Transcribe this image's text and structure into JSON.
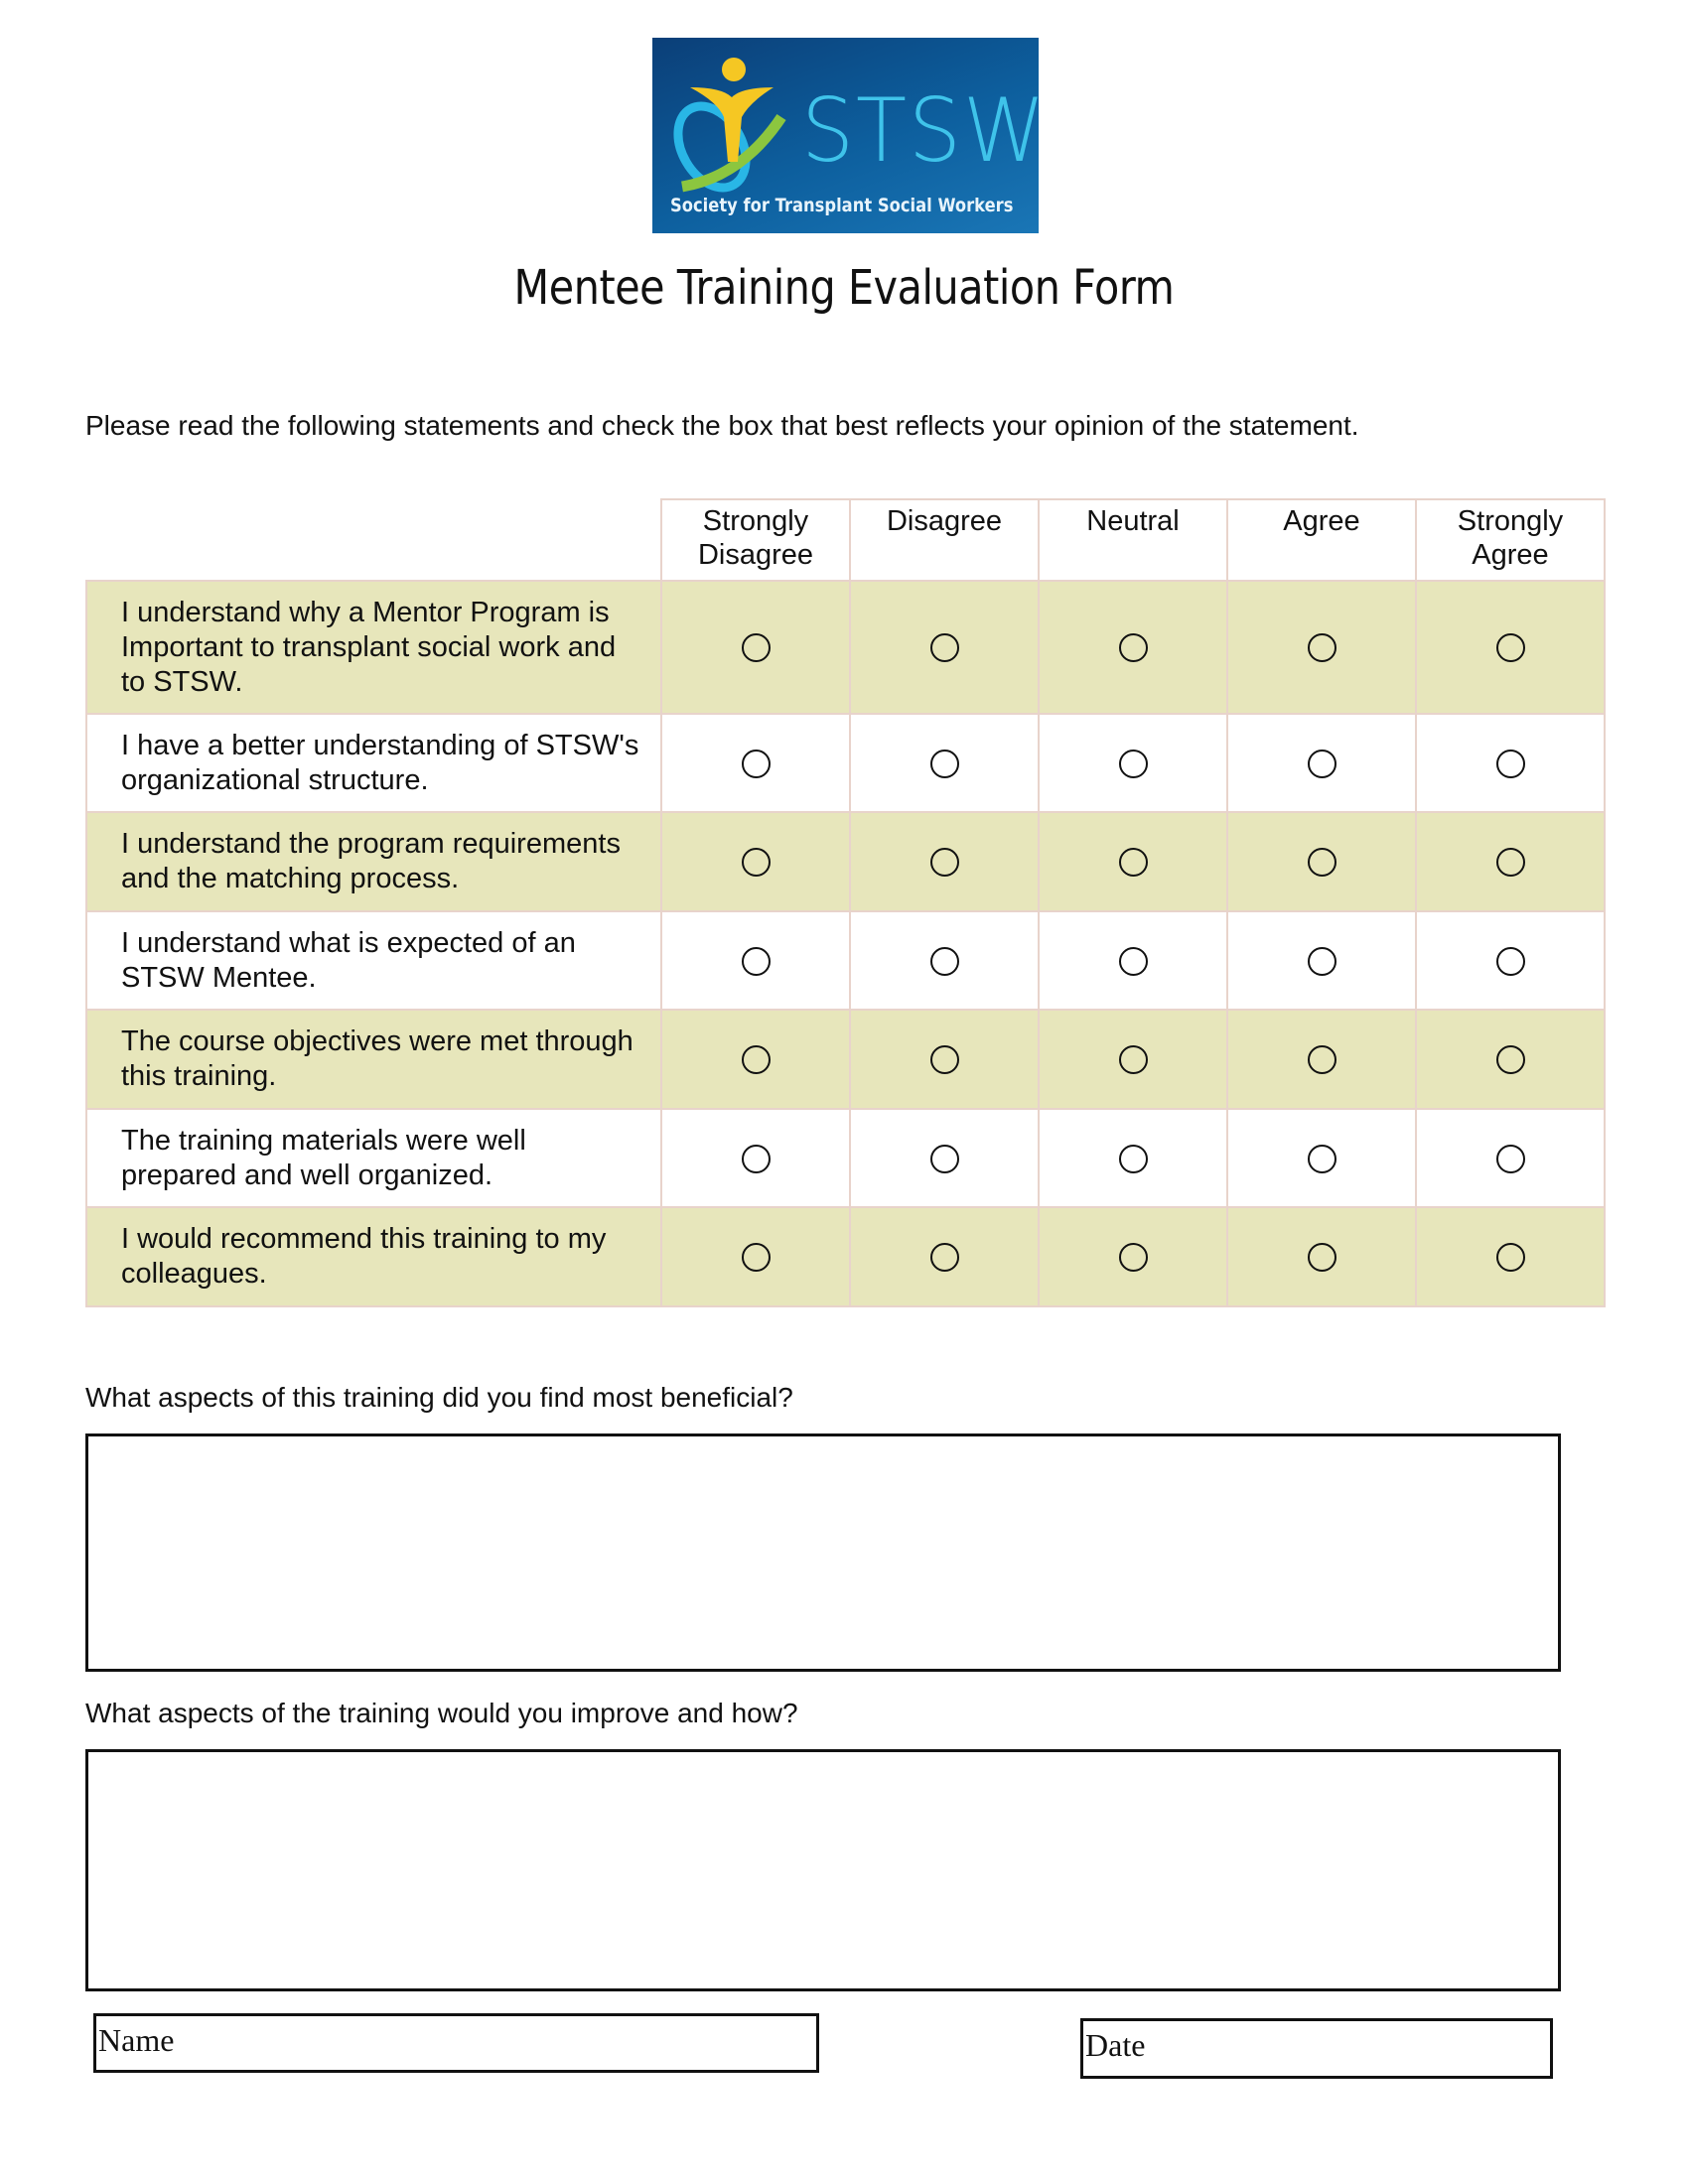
{
  "logo": {
    "wordmark": "STSW",
    "tagline": "Society for Transplant Social Workers",
    "colors": {
      "background": "#0d5f9e",
      "wordmark": "#3fc3ea",
      "figure": "#f5c723",
      "swoosh_green": "#8cc63f",
      "swoosh_blue": "#29b6e6"
    }
  },
  "title": "Mentee Training Evaluation Form",
  "instructions": "Please read the following statements and check the box that best reflects your opinion of the statement.",
  "scale": [
    {
      "line1": "Strongly",
      "line2": "Disagree"
    },
    {
      "line1": "Disagree",
      "line2": ""
    },
    {
      "line1": "Neutral",
      "line2": ""
    },
    {
      "line1": "Agree",
      "line2": ""
    },
    {
      "line1": "Strongly",
      "line2": "Agree"
    }
  ],
  "statements": [
    "I understand why a Mentor Program is Important to transplant social work and to STSW.",
    "I have a better understanding of STSW's organizational structure.",
    "I understand the program requirements and the matching process.",
    "I understand what is expected of an STSW Mentee.",
    "The course objectives were met through this training.",
    "The training materials were well prepared and well organized.",
    "I would recommend this training to my colleagues."
  ],
  "row_shade_color": "#e7e6bb",
  "questions": {
    "q1": "What aspects of this training did you find most beneficial?",
    "q2": "What aspects of the training would you improve and how?"
  },
  "fields": {
    "name": "Name",
    "date": "Date"
  }
}
